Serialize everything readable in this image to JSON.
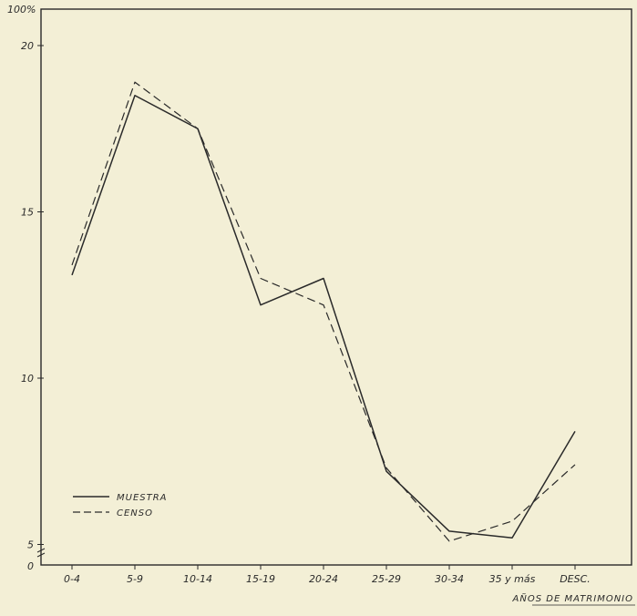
{
  "colors": {
    "paper": "#f3efd6",
    "ink": "#2a2a2a"
  },
  "chart_data": {
    "type": "line",
    "title": "",
    "xlabel": "AÑOS DE MATRIMONIO",
    "ylabel": "",
    "y_top_label": "100%",
    "categories": [
      "0-4",
      "5-9",
      "10-14",
      "15-19",
      "20-24",
      "25-29",
      "30-34",
      "35 y más",
      "DESC."
    ],
    "y_ticks": [
      5,
      10,
      15,
      20
    ],
    "y_tick_labels": [
      "5",
      "10",
      "15",
      "20"
    ],
    "y_zero_label": "0",
    "ylim": [
      4,
      21.5
    ],
    "grid": false,
    "legend_position": "bottom-left",
    "series": [
      {
        "name": "MUESTRA",
        "style": "solid",
        "values": [
          13.1,
          18.5,
          17.5,
          12.2,
          13.0,
          7.2,
          5.4,
          5.2,
          8.4
        ]
      },
      {
        "name": "CENSO",
        "style": "dashed",
        "values": [
          13.4,
          18.9,
          17.5,
          13.0,
          12.2,
          7.3,
          5.1,
          5.7,
          7.4
        ]
      }
    ]
  }
}
